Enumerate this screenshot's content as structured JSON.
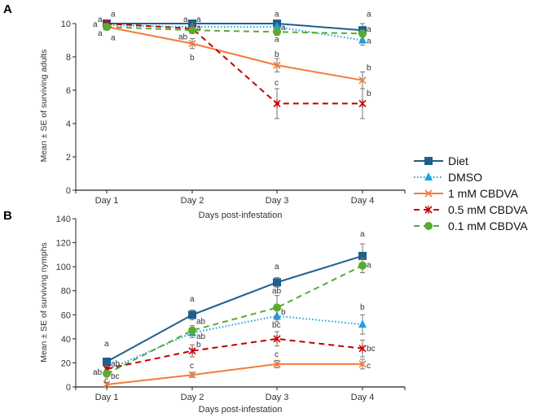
{
  "legend": {
    "placement": "right",
    "entries": [
      "Diet",
      "DMSO",
      "1 mM CBDVA",
      "0.5 mM CBDVA",
      "0.1 mM CBDVA"
    ]
  },
  "series_style": [
    {
      "name": "Diet",
      "color": "#1f5f8b",
      "line": "solid",
      "marker": "square"
    },
    {
      "name": "DMSO",
      "color": "#1ba1e2",
      "line": "dotted",
      "marker": "triangle"
    },
    {
      "name": "1 mM CBDVA",
      "color": "#f47b3b",
      "line": "solid",
      "marker": "x"
    },
    {
      "name": "0.5 mM CBDVA",
      "color": "#c00000",
      "line": "dashed",
      "marker": "asterisk"
    },
    {
      "name": "0.1 mM CBDVA",
      "color": "#5aaa32",
      "line": "dashed",
      "marker": "circle"
    }
  ],
  "chart_data": [
    {
      "panel": "A",
      "type": "line",
      "categories": [
        "Day 1",
        "Day 2",
        "Day 3",
        "Day 4"
      ],
      "xlabel": "Days post-infestation",
      "ylabel": "Mean ± SE of surviving adults",
      "ylim": [
        0,
        10
      ],
      "yticks": [
        "0",
        "2",
        "4",
        "6",
        "8",
        "10"
      ],
      "grid": false,
      "series": [
        {
          "name": "Diet",
          "values": [
            10,
            10,
            10,
            9.6
          ],
          "errors": [
            0.1,
            0.1,
            0.1,
            0.4
          ]
        },
        {
          "name": "DMSO",
          "values": [
            9.9,
            9.8,
            9.8,
            9.0
          ],
          "errors": [
            0.1,
            0.1,
            0.1,
            0.3
          ]
        },
        {
          "name": "1 mM CBDVA",
          "values": [
            9.8,
            8.8,
            7.5,
            6.6
          ],
          "errors": [
            0.1,
            0.3,
            0.4,
            0.5
          ]
        },
        {
          "name": "0.5 mM CBDVA",
          "values": [
            10,
            9.7,
            5.2,
            5.2
          ],
          "errors": [
            0.1,
            0.1,
            0.9,
            0.9
          ]
        },
        {
          "name": "0.1 mM CBDVA",
          "values": [
            9.8,
            9.6,
            9.5,
            9.4
          ],
          "errors": [
            0.1,
            0.1,
            0.2,
            0.2
          ]
        }
      ],
      "annotations": [
        {
          "day": 1,
          "y": 10.6,
          "side": "right",
          "text": "a"
        },
        {
          "day": 1,
          "y": 10.3,
          "side": "left",
          "text": "a"
        },
        {
          "day": 1,
          "y": 10.0,
          "side": "left",
          "text": "a"
        },
        {
          "day": 1,
          "y": 9.46,
          "side": "left",
          "text": "a"
        },
        {
          "day": 1,
          "y": 9.2,
          "side": "right",
          "text": "a"
        },
        {
          "day": 2,
          "y": 10.3,
          "side": "left",
          "text": "a"
        },
        {
          "day": 2,
          "y": 10.3,
          "side": "right",
          "text": "a"
        },
        {
          "day": 2,
          "y": 9.8,
          "side": "right",
          "text": "a"
        },
        {
          "day": 2,
          "y": 9.25,
          "side": "left",
          "text": "ab"
        },
        {
          "day": 2,
          "y": 8.0,
          "side": "center",
          "text": "b"
        },
        {
          "day": 3,
          "y": 10.6,
          "side": "center",
          "text": "a"
        },
        {
          "day": 3,
          "y": 9.8,
          "side": "right",
          "text": "a"
        },
        {
          "day": 3,
          "y": 9.1,
          "side": "center",
          "text": "a"
        },
        {
          "day": 3,
          "y": 8.2,
          "side": "center",
          "text": "b"
        },
        {
          "day": 3,
          "y": 6.5,
          "side": "center",
          "text": "c"
        },
        {
          "day": 4,
          "y": 10.6,
          "side": "right",
          "text": "a"
        },
        {
          "day": 4,
          "y": 9.7,
          "side": "right",
          "text": "a"
        },
        {
          "day": 4,
          "y": 9.0,
          "side": "right",
          "text": "a"
        },
        {
          "day": 4,
          "y": 7.4,
          "side": "right",
          "text": "b"
        },
        {
          "day": 4,
          "y": 5.85,
          "side": "right",
          "text": "b"
        }
      ]
    },
    {
      "panel": "B",
      "type": "line",
      "categories": [
        "Day 1",
        "Day 2",
        "Day 3",
        "Day 4"
      ],
      "xlabel": "Days post-infestation",
      "ylabel": "Mean ± SE of surviving nymphs",
      "ylim": [
        0,
        140
      ],
      "yticks": [
        "0",
        "20",
        "40",
        "60",
        "80",
        "100",
        "120",
        "140"
      ],
      "grid": false,
      "series": [
        {
          "name": "Diet",
          "values": [
            21,
            60,
            87,
            109
          ],
          "errors": [
            3,
            4,
            4,
            10
          ]
        },
        {
          "name": "DMSO",
          "values": [
            14,
            45,
            59,
            52
          ],
          "errors": [
            2,
            4,
            5,
            8
          ]
        },
        {
          "name": "1 mM CBDVA",
          "values": [
            2,
            10,
            19,
            19
          ],
          "errors": [
            1,
            2,
            3,
            4
          ]
        },
        {
          "name": "0.5 mM CBDVA",
          "values": [
            15,
            30,
            40,
            32
          ],
          "errors": [
            2,
            5,
            6,
            7
          ]
        },
        {
          "name": "0.1 mM CBDVA",
          "values": [
            11,
            47,
            66,
            101
          ],
          "errors": [
            2,
            4,
            10,
            6
          ]
        }
      ],
      "annotations": [
        {
          "day": 1,
          "y": 36.5,
          "side": "center",
          "text": "a"
        },
        {
          "day": 1,
          "y": 20,
          "side": "right",
          "text": "ab"
        },
        {
          "day": 1,
          "y": 13,
          "side": "left",
          "text": "ab"
        },
        {
          "day": 1,
          "y": 9.5,
          "side": "right",
          "text": "bc"
        },
        {
          "day": 1,
          "y": 6,
          "side": "center",
          "text": "c"
        },
        {
          "day": 2,
          "y": 73.7,
          "side": "center",
          "text": "a"
        },
        {
          "day": 2,
          "y": 55,
          "side": "right",
          "text": "ab"
        },
        {
          "day": 2,
          "y": 42.6,
          "side": "right",
          "text": "ab"
        },
        {
          "day": 2,
          "y": 35.8,
          "side": "right",
          "text": "b"
        },
        {
          "day": 2,
          "y": 18.3,
          "side": "center",
          "text": "c"
        },
        {
          "day": 3,
          "y": 100.7,
          "side": "center",
          "text": "a"
        },
        {
          "day": 3,
          "y": 80.5,
          "side": "center",
          "text": "ab"
        },
        {
          "day": 3,
          "y": 63,
          "side": "right",
          "text": "b"
        },
        {
          "day": 3,
          "y": 52,
          "side": "center",
          "text": "bc"
        },
        {
          "day": 3,
          "y": 27.7,
          "side": "center",
          "text": "c"
        },
        {
          "day": 4,
          "y": 127.8,
          "side": "center",
          "text": "a"
        },
        {
          "day": 4,
          "y": 102,
          "side": "right",
          "text": "a"
        },
        {
          "day": 4,
          "y": 67,
          "side": "center",
          "text": "b"
        },
        {
          "day": 4,
          "y": 32.5,
          "side": "right",
          "text": "bc"
        },
        {
          "day": 4,
          "y": 18.3,
          "side": "right",
          "text": "c"
        }
      ]
    }
  ]
}
